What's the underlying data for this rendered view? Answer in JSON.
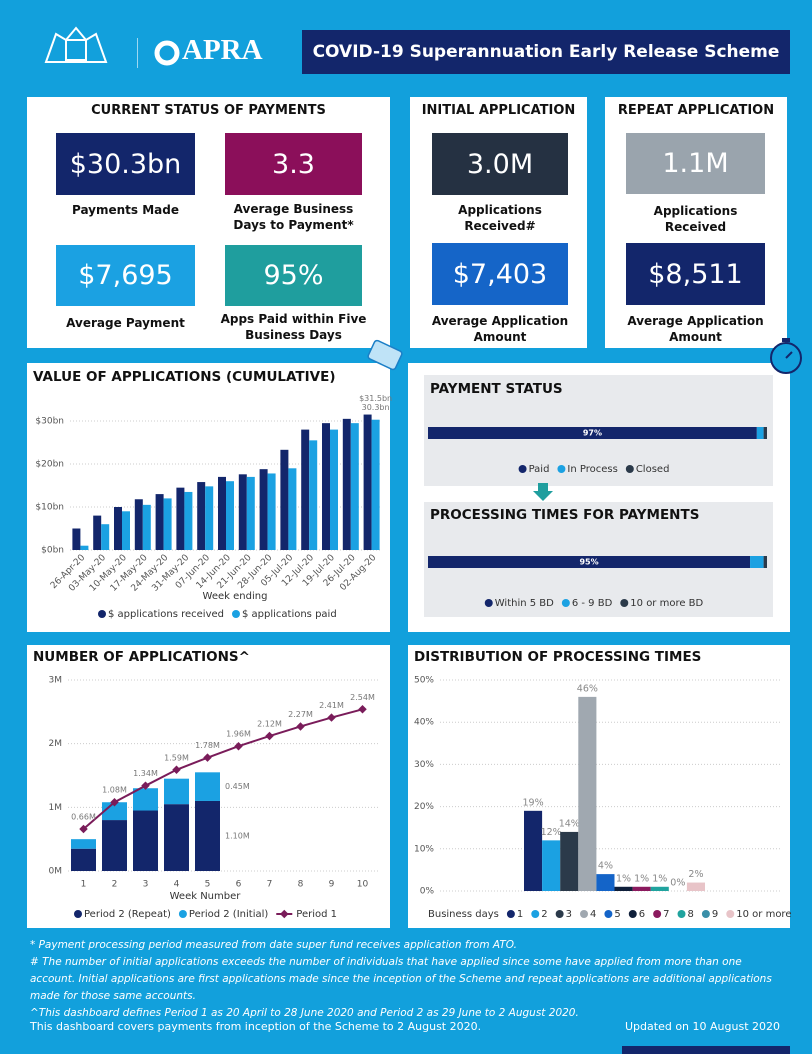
{
  "header": {
    "logo": "APRA",
    "title": "COVID-19 Superannuation Early Release Scheme"
  },
  "status": {
    "title": "CURRENT STATUS OF PAYMENTS",
    "cards": [
      {
        "value": "$30.3bn",
        "label": "Payments Made"
      },
      {
        "value": "3.3",
        "label": "Average Business Days to Payment*"
      },
      {
        "value": "$7,695",
        "label": "Average Payment"
      },
      {
        "value": "95%",
        "label": "Apps Paid within Five Business Days"
      }
    ]
  },
  "initial": {
    "title": "INITIAL APPLICATION",
    "cards": [
      {
        "value": "3.0M",
        "label": "Applications Received#"
      },
      {
        "value": "$7,403",
        "label": "Average Application Amount"
      }
    ]
  },
  "repeat": {
    "title": "REPEAT APPLICATION",
    "cards": [
      {
        "value": "1.1M",
        "label": "Applications Received"
      },
      {
        "value": "$8,511",
        "label": "Average Application Amount"
      }
    ]
  },
  "chart_data": [
    {
      "type": "grouped_bar",
      "title": "VALUE OF APPLICATIONS (CUMULATIVE)",
      "xlabel": "Week ending",
      "categories": [
        "26-Apr-20",
        "03-May-20",
        "10-May-20",
        "17-May-20",
        "24-May-20",
        "31-May-20",
        "07-Jun-20",
        "14-Jun-20",
        "21-Jun-20",
        "28-Jun-20",
        "05-Jul-20",
        "12-Jul-20",
        "19-Jul-20",
        "26-Jul-20",
        "02-Aug-20"
      ],
      "series": [
        {
          "name": "$ applications received",
          "color": "#13266b",
          "values": [
            5.0,
            8.0,
            10.0,
            11.8,
            13.0,
            14.5,
            15.8,
            17.0,
            17.6,
            18.8,
            23.3,
            28.0,
            29.5,
            30.5,
            31.5
          ],
          "value_labels": [
            null,
            null,
            null,
            null,
            null,
            null,
            null,
            null,
            null,
            null,
            null,
            null,
            null,
            null,
            "$31.5bn"
          ]
        },
        {
          "name": "$ applications paid",
          "color": "#1ba1e2",
          "values": [
            1.0,
            6.0,
            9.0,
            10.5,
            12.0,
            13.5,
            14.8,
            16.0,
            17.0,
            17.8,
            19.0,
            25.5,
            28.0,
            29.5,
            30.3
          ],
          "value_labels": [
            null,
            null,
            null,
            null,
            null,
            null,
            null,
            null,
            null,
            null,
            null,
            null,
            null,
            null,
            "30.3bn"
          ]
        }
      ],
      "ylim": [
        0,
        36
      ],
      "yticks": [
        {
          "value": 0,
          "label": "$0bn"
        },
        {
          "value": 10,
          "label": "$10bn"
        },
        {
          "value": 20,
          "label": "$20bn"
        },
        {
          "value": 30,
          "label": "$30bn"
        }
      ],
      "grid": true,
      "legend": "bottom"
    },
    {
      "type": "stacked_bar_h",
      "title": "PAYMENT STATUS",
      "xlim": [
        0,
        100
      ],
      "series": [
        {
          "name": "Paid",
          "color": "#13266b",
          "values": [
            97
          ],
          "value_labels": [
            "97%"
          ]
        },
        {
          "name": "In Process",
          "color": "#1ba1e2",
          "values": [
            2
          ]
        },
        {
          "name": "Closed",
          "color": "#2b3a4a",
          "values": [
            1
          ]
        }
      ],
      "legend": "bottom"
    },
    {
      "type": "stacked_bar_h",
      "title": "PROCESSING TIMES FOR PAYMENTS",
      "xlim": [
        0,
        100
      ],
      "series": [
        {
          "name": "Within 5 BD",
          "color": "#13266b",
          "values": [
            95
          ],
          "value_labels": [
            "95%"
          ]
        },
        {
          "name": "6 - 9 BD",
          "color": "#1ba1e2",
          "values": [
            4
          ]
        },
        {
          "name": "10 or more BD",
          "color": "#2b3a4a",
          "values": [
            1
          ]
        }
      ],
      "legend": "bottom"
    },
    {
      "type": "bar_line",
      "title": "NUMBER OF APPLICATIONS^",
      "xlabel": "Week Number",
      "categories": [
        1,
        2,
        3,
        4,
        5,
        6,
        7,
        8,
        9,
        10
      ],
      "series": [
        {
          "name": "Period 2 (Repeat)",
          "type": "bar",
          "color": "#13266b",
          "values": [
            0.35,
            0.8,
            0.95,
            1.05,
            1.1,
            null,
            null,
            null,
            null,
            null
          ],
          "value_labels": [
            null,
            null,
            null,
            null,
            "1.10M",
            null,
            null,
            null,
            null,
            null
          ]
        },
        {
          "name": "Period 2 (Initial)",
          "type": "bar",
          "color": "#1ba1e2",
          "values": [
            0.15,
            0.28,
            0.35,
            0.4,
            0.45,
            null,
            null,
            null,
            null,
            null
          ],
          "value_labels": [
            null,
            null,
            null,
            null,
            "0.45M",
            null,
            null,
            null,
            null,
            null
          ]
        },
        {
          "name": "Period 1",
          "type": "line",
          "color": "#7a1c5a",
          "values": [
            0.66,
            1.08,
            1.34,
            1.59,
            1.78,
            1.96,
            2.12,
            2.27,
            2.41,
            2.54
          ],
          "value_labels": [
            "0.66M",
            "1.08M",
            "1.34M",
            "1.59M",
            "1.78M",
            "1.96M",
            "2.12M",
            "2.27M",
            "2.41M",
            "2.54M"
          ]
        }
      ],
      "ylim": [
        0,
        3
      ],
      "yticks": [
        {
          "value": 0,
          "label": "0M"
        },
        {
          "value": 1,
          "label": "1M"
        },
        {
          "value": 2,
          "label": "2M"
        },
        {
          "value": 3,
          "label": "3M"
        }
      ],
      "grid": true,
      "legend": "bottom"
    },
    {
      "type": "bar",
      "title": "DISTRIBUTION OF PROCESSING TIMES",
      "legend_title": "Business days",
      "categories": [
        "1",
        "2",
        "3",
        "4",
        "5",
        "6",
        "7",
        "8",
        "9",
        "10 or more"
      ],
      "values": [
        19,
        12,
        14,
        46,
        4,
        1,
        1,
        1,
        0,
        2
      ],
      "value_labels": [
        "19%",
        "12%",
        "14%",
        "46%",
        "4%",
        "1%",
        "1%",
        "1%",
        "0%",
        "2%"
      ],
      "colors": [
        "#13266b",
        "#1ba1e2",
        "#2b3a4a",
        "#a0a8b0",
        "#1464c8",
        "#0f1f3a",
        "#8b1a5e",
        "#20a39e",
        "#3a8fa8",
        "#e8c4c8"
      ],
      "ylim": [
        0,
        50
      ],
      "yticks": [
        {
          "value": 0,
          "label": "0%"
        },
        {
          "value": 10,
          "label": "10%"
        },
        {
          "value": 20,
          "label": "20%"
        },
        {
          "value": 30,
          "label": "30%"
        },
        {
          "value": 40,
          "label": "40%"
        },
        {
          "value": 50,
          "label": "50%"
        }
      ],
      "grid": true,
      "legend": "bottom"
    }
  ],
  "footnotes": [
    "* Payment processing period measured from date super fund receives application from ATO.",
    "# The number of initial applications exceeds the number of individuals that have applied since some have applied from more than one account. Initial applications are first applications made since the inception of the Scheme and repeat applications are additional applications made for those same accounts.",
    "^This dashboard defines Period 1 as 20 April to 28 June 2020 and Period 2 as 29 June to 2 August 2020."
  ],
  "footer": {
    "left": "This dashboard covers payments from inception of the Scheme to 2 August 2020.",
    "right": "Updated on 10 August 2020"
  }
}
